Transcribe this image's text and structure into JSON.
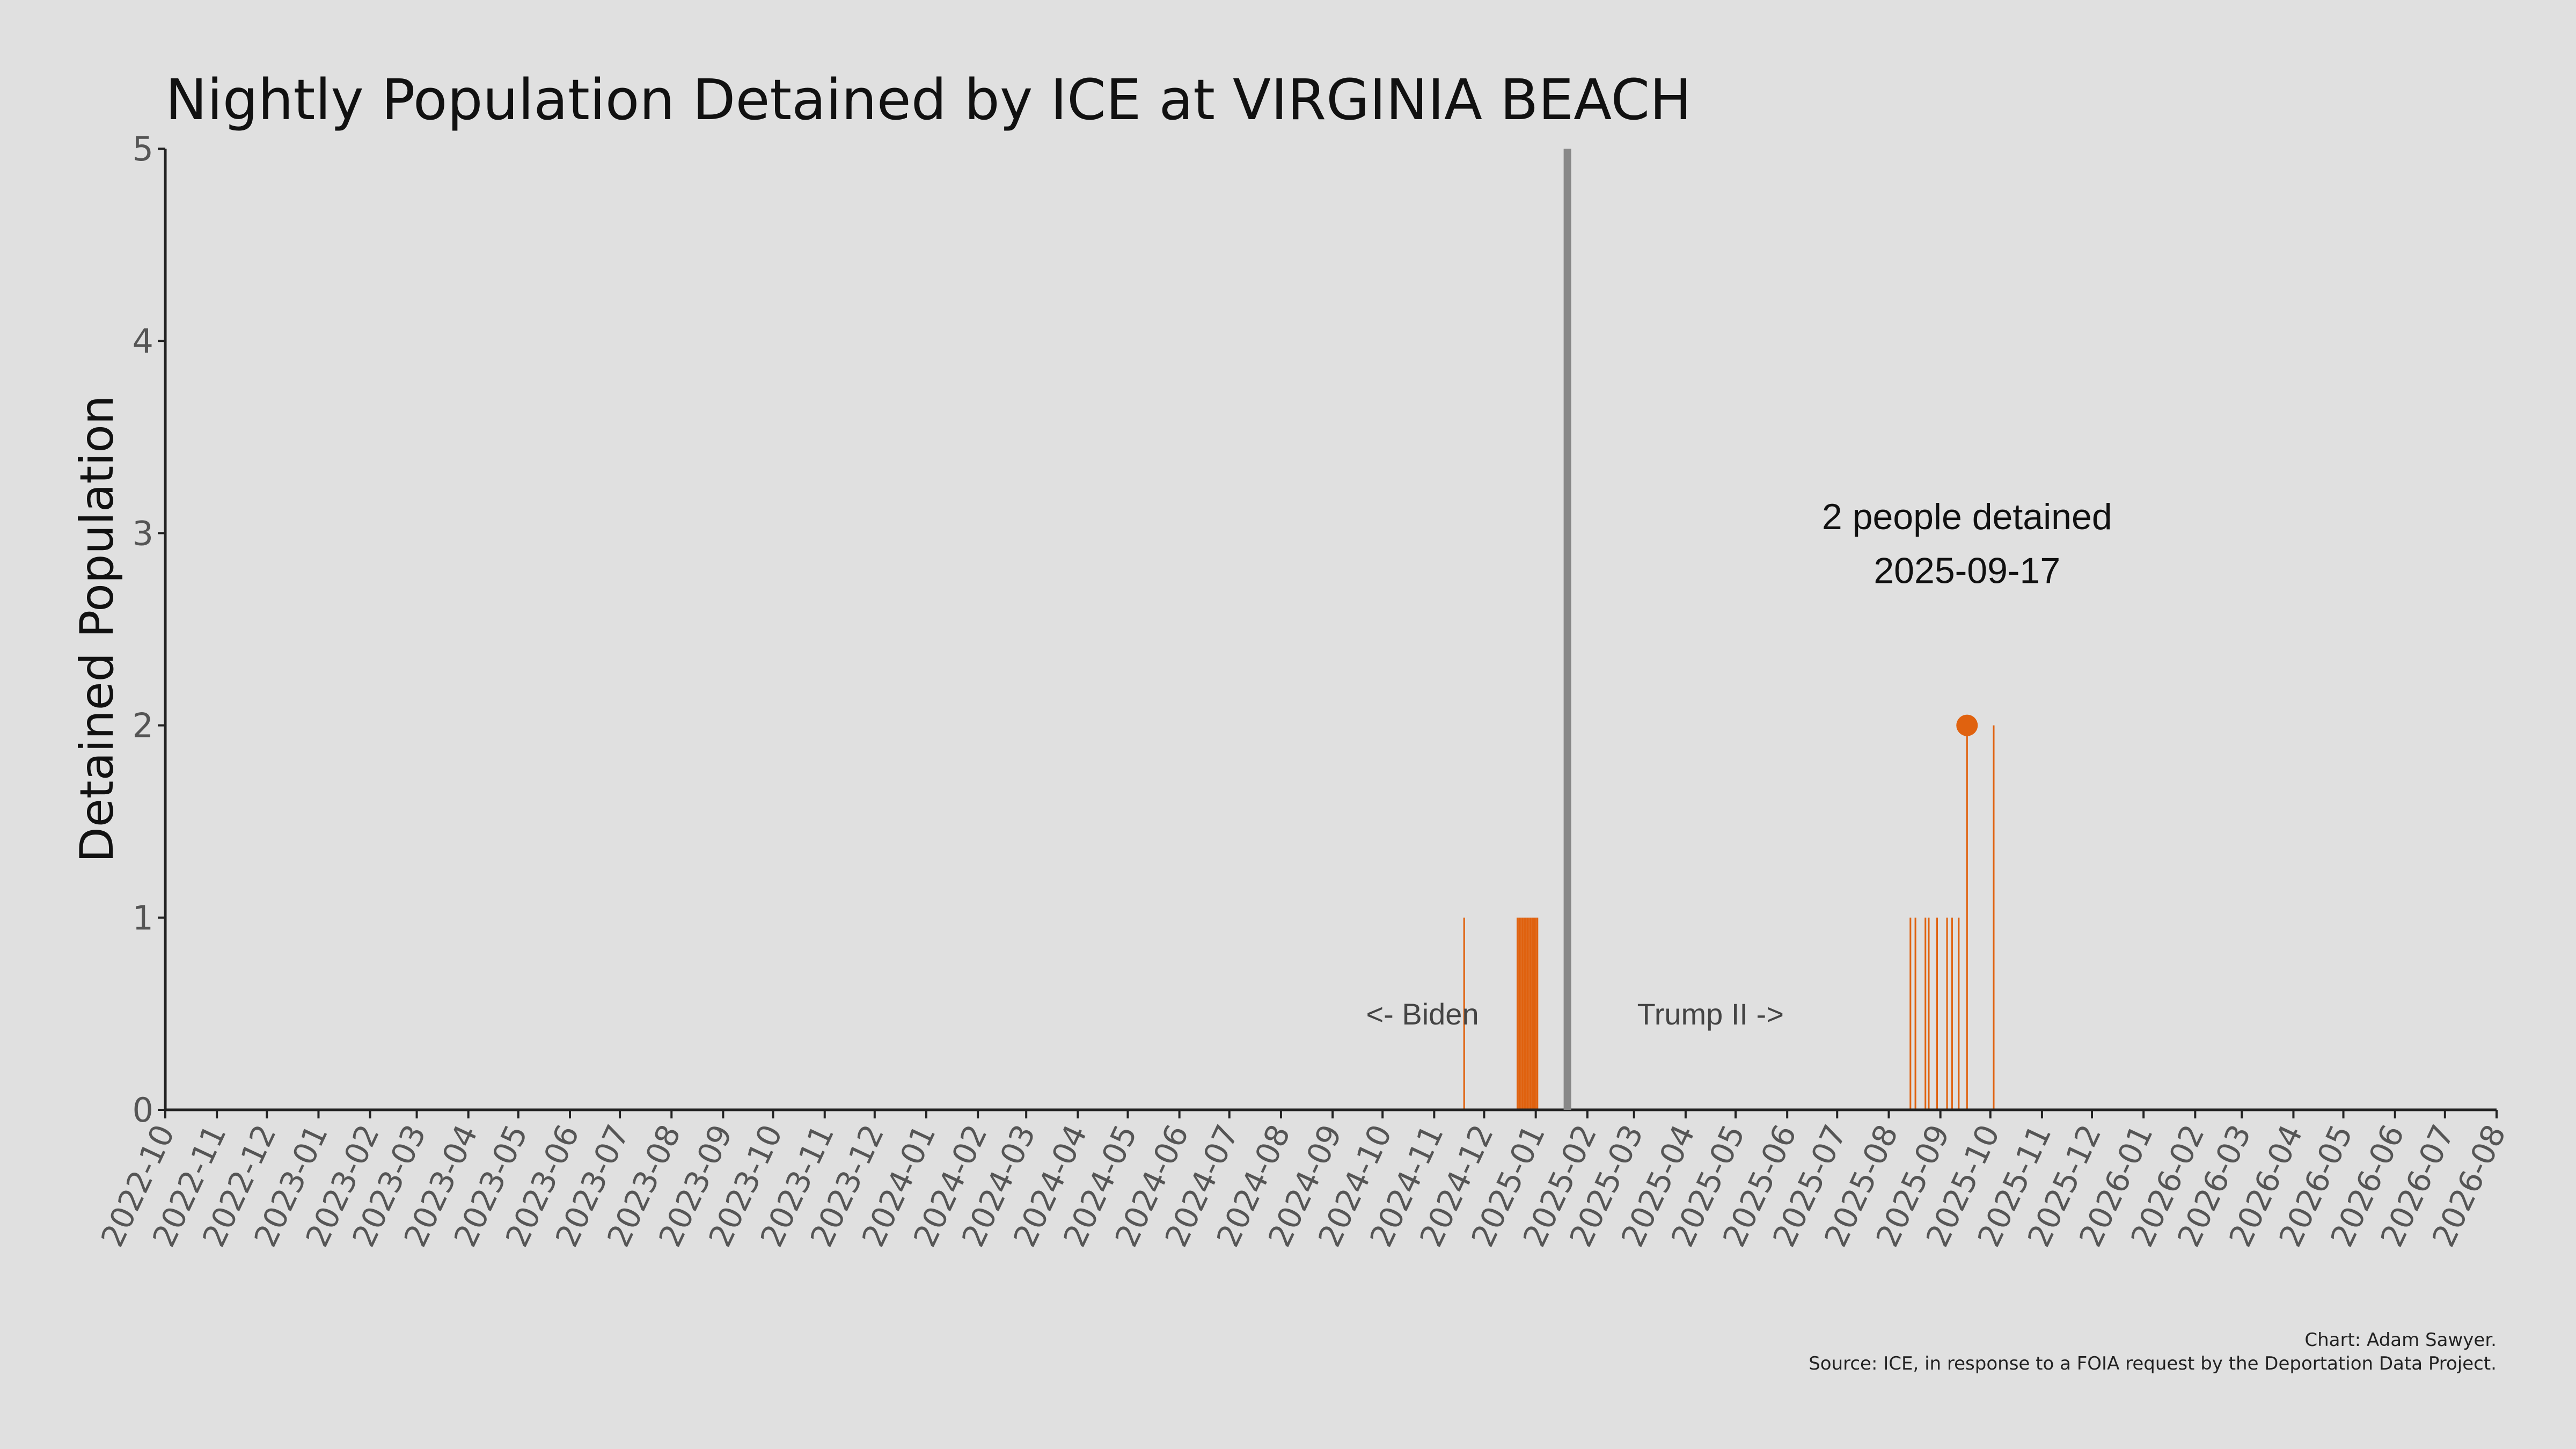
{
  "chart_data": {
    "type": "bar",
    "title": "Nightly Population Detained by ICE at VIRGINIA BEACH",
    "ylabel": "Detained Population",
    "xlabel": "",
    "ylim": [
      0,
      5
    ],
    "yticks": [
      0,
      1,
      2,
      3,
      4,
      5
    ],
    "xlim": [
      "2022-10-01",
      "2026-08-01"
    ],
    "xticks": [
      "2022-10",
      "2022-11",
      "2022-12",
      "2023-01",
      "2023-02",
      "2023-03",
      "2023-04",
      "2023-05",
      "2023-06",
      "2023-07",
      "2023-08",
      "2023-09",
      "2023-10",
      "2023-11",
      "2023-12",
      "2024-01",
      "2024-02",
      "2024-03",
      "2024-04",
      "2024-05",
      "2024-06",
      "2024-07",
      "2024-08",
      "2024-09",
      "2024-10",
      "2024-11",
      "2024-12",
      "2025-01",
      "2025-02",
      "2025-03",
      "2025-04",
      "2025-05",
      "2025-06",
      "2025-07",
      "2025-08",
      "2025-09",
      "2025-10",
      "2025-11",
      "2025-12",
      "2026-01",
      "2026-02",
      "2026-03",
      "2026-04",
      "2026-05",
      "2026-06",
      "2026-07",
      "2026-08"
    ],
    "grid": false,
    "bar_color": "#e0620f",
    "series": [
      {
        "points": [
          {
            "date": "2024-11-19",
            "value": 1
          },
          {
            "date": "2024-12-21",
            "value": 1
          },
          {
            "date": "2024-12-22",
            "value": 1
          },
          {
            "date": "2024-12-23",
            "value": 1
          },
          {
            "date": "2024-12-24",
            "value": 1
          },
          {
            "date": "2024-12-25",
            "value": 1
          },
          {
            "date": "2024-12-26",
            "value": 1
          },
          {
            "date": "2024-12-27",
            "value": 1
          },
          {
            "date": "2024-12-28",
            "value": 1
          },
          {
            "date": "2024-12-29",
            "value": 1
          },
          {
            "date": "2024-12-30",
            "value": 1
          },
          {
            "date": "2024-12-31",
            "value": 1
          },
          {
            "date": "2025-01-01",
            "value": 1
          },
          {
            "date": "2025-01-02",
            "value": 1
          },
          {
            "date": "2025-08-14",
            "value": 1
          },
          {
            "date": "2025-08-17",
            "value": 1
          },
          {
            "date": "2025-08-23",
            "value": 1
          },
          {
            "date": "2025-08-25",
            "value": 1
          },
          {
            "date": "2025-08-30",
            "value": 1
          },
          {
            "date": "2025-09-05",
            "value": 1
          },
          {
            "date": "2025-09-08",
            "value": 1
          },
          {
            "date": "2025-09-12",
            "value": 1
          },
          {
            "date": "2025-09-17",
            "value": 2
          },
          {
            "date": "2025-10-03",
            "value": 2
          }
        ]
      }
    ],
    "inauguration_line": {
      "date": "2025-01-20",
      "color": "#888888"
    },
    "annotations": {
      "biden": "<- Biden",
      "trump": "Trump II ->",
      "highlight_date": "2025-09-17",
      "highlight_value": 2,
      "highlight_line1": "2 people detained",
      "highlight_line2": "2025-09-17"
    },
    "credit_line1": "Chart: Adam Sawyer.",
    "credit_line2": "Source: ICE, in response to a FOIA request by the Deportation Data Project."
  }
}
